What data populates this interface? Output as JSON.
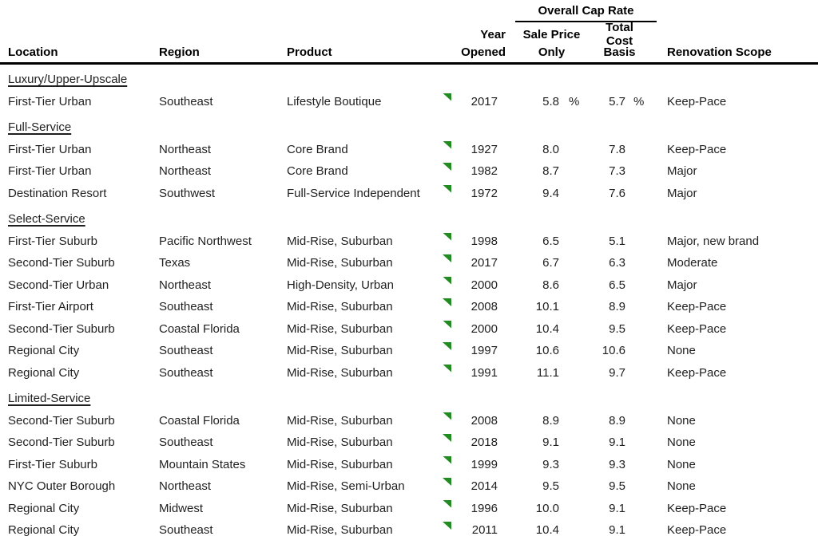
{
  "header": {
    "cap_rate_group": "Overall Cap Rate",
    "year_line1": "Year",
    "year_line2": "Opened",
    "sale_price_line1": "Sale Price",
    "sale_price_line2": "Only",
    "total_cost_line1": "Total Cost",
    "total_cost_line2": "Basis",
    "col_location": "Location",
    "col_region": "Region",
    "col_product": "Product",
    "col_renovation": "Renovation Scope"
  },
  "colors": {
    "flag_green": "#228B22",
    "text": "#1f1f1f",
    "rule": "#000000"
  },
  "sections": [
    {
      "label": "Luxury/Upper-Upscale",
      "rows": [
        {
          "location": "First-Tier Urban",
          "region": "Southeast",
          "product": "Lifestyle Boutique",
          "year": "2017",
          "sale_price": "5.8",
          "sale_price_pct": "%",
          "total_cost": "5.7",
          "total_cost_pct": "%",
          "renovation": "Keep-Pace"
        }
      ]
    },
    {
      "label": "Full-Service",
      "rows": [
        {
          "location": "First-Tier Urban",
          "region": "Northeast",
          "product": "Core Brand",
          "year": "1927",
          "sale_price": "8.0",
          "total_cost": "7.8",
          "renovation": "Keep-Pace"
        },
        {
          "location": "First-Tier Urban",
          "region": "Northeast",
          "product": "Core Brand",
          "year": "1982",
          "sale_price": "8.7",
          "total_cost": "7.3",
          "renovation": "Major"
        },
        {
          "location": "Destination Resort",
          "region": "Southwest",
          "product": "Full-Service Independent",
          "year": "1972",
          "sale_price": "9.4",
          "total_cost": "7.6",
          "renovation": "Major"
        }
      ]
    },
    {
      "label": "Select-Service",
      "rows": [
        {
          "location": "First-Tier Suburb",
          "region": "Pacific Northwest",
          "product": "Mid-Rise, Suburban",
          "year": "1998",
          "sale_price": "6.5",
          "total_cost": "5.1",
          "renovation": "Major, new brand"
        },
        {
          "location": "Second-Tier Suburb",
          "region": "Texas",
          "product": "Mid-Rise, Suburban",
          "year": "2017",
          "sale_price": "6.7",
          "total_cost": "6.3",
          "renovation": "Moderate"
        },
        {
          "location": "Second-Tier Urban",
          "region": "Northeast",
          "product": "High-Density, Urban",
          "year": "2000",
          "sale_price": "8.6",
          "total_cost": "6.5",
          "renovation": "Major"
        },
        {
          "location": "First-Tier Airport",
          "region": "Southeast",
          "product": "Mid-Rise, Suburban",
          "year": "2008",
          "sale_price": "10.1",
          "total_cost": "8.9",
          "renovation": "Keep-Pace"
        },
        {
          "location": "Second-Tier Suburb",
          "region": "Coastal Florida",
          "product": "Mid-Rise, Suburban",
          "year": "2000",
          "sale_price": "10.4",
          "total_cost": "9.5",
          "renovation": "Keep-Pace"
        },
        {
          "location": "Regional City",
          "region": "Southeast",
          "product": "Mid-Rise, Suburban",
          "year": "1997",
          "sale_price": "10.6",
          "total_cost": "10.6",
          "renovation": "None"
        },
        {
          "location": "Regional City",
          "region": "Southeast",
          "product": "Mid-Rise, Suburban",
          "year": "1991",
          "sale_price": "11.1",
          "total_cost": "9.7",
          "renovation": "Keep-Pace"
        }
      ]
    },
    {
      "label": "Limited-Service",
      "rows": [
        {
          "location": "Second-Tier Suburb",
          "region": "Coastal Florida",
          "product": "Mid-Rise, Suburban",
          "year": "2008",
          "sale_price": "8.9",
          "total_cost": "8.9",
          "renovation": "None"
        },
        {
          "location": "Second-Tier Suburb",
          "region": "Southeast",
          "product": "Mid-Rise, Suburban",
          "year": "2018",
          "sale_price": "9.1",
          "total_cost": "9.1",
          "renovation": "None"
        },
        {
          "location": "First-Tier Suburb",
          "region": "Mountain States",
          "product": "Mid-Rise, Suburban",
          "year": "1999",
          "sale_price": "9.3",
          "total_cost": "9.3",
          "renovation": "None"
        },
        {
          "location": "NYC Outer Borough",
          "region": "Northeast",
          "product": "Mid-Rise, Semi-Urban",
          "year": "2014",
          "sale_price": "9.5",
          "total_cost": "9.5",
          "renovation": "None"
        },
        {
          "location": "Regional City",
          "region": "Midwest",
          "product": "Mid-Rise, Suburban",
          "year": "1996",
          "sale_price": "10.0",
          "total_cost": "9.1",
          "renovation": "Keep-Pace"
        },
        {
          "location": "Regional City",
          "region": "Southeast",
          "product": "Mid-Rise, Suburban",
          "year": "2011",
          "sale_price": "10.4",
          "total_cost": "9.1",
          "renovation": "Keep-Pace"
        }
      ]
    }
  ]
}
